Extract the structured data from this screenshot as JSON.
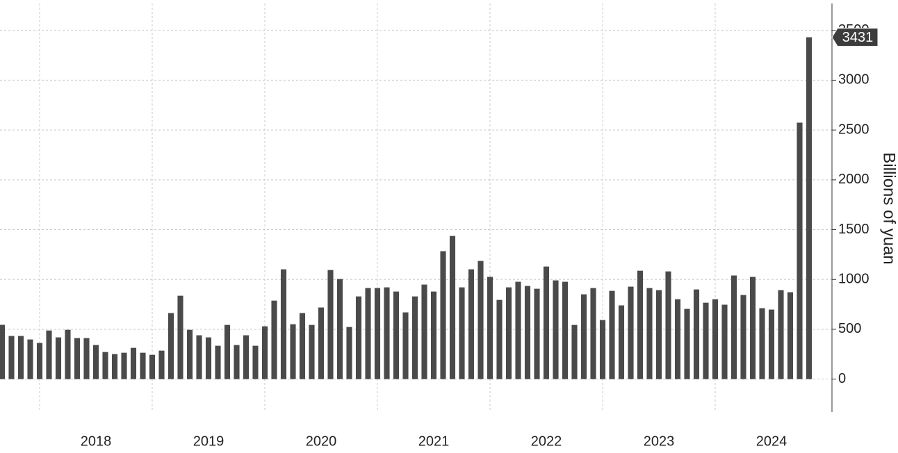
{
  "chart_data": {
    "type": "bar",
    "y_axis_label": "Billions of yuan",
    "categories": [
      null,
      null,
      null,
      null,
      null,
      null,
      null,
      null,
      null,
      null,
      "2018",
      null,
      null,
      null,
      null,
      null,
      null,
      null,
      null,
      null,
      null,
      null,
      "2019",
      null,
      null,
      null,
      null,
      null,
      null,
      null,
      null,
      null,
      null,
      null,
      "2020",
      null,
      null,
      null,
      null,
      null,
      null,
      null,
      null,
      null,
      null,
      null,
      "2021",
      null,
      null,
      null,
      null,
      null,
      null,
      null,
      null,
      null,
      null,
      null,
      "2022",
      null,
      null,
      null,
      null,
      null,
      null,
      null,
      null,
      null,
      null,
      null,
      "2023",
      null,
      null,
      null,
      null,
      null,
      null,
      null,
      null,
      null,
      null,
      null,
      "2024",
      null,
      null,
      null,
      null
    ],
    "values": [
      545,
      433,
      433,
      398,
      363,
      488,
      419,
      495,
      412,
      412,
      342,
      272,
      251,
      265,
      314,
      265,
      244,
      286,
      663,
      837,
      495,
      440,
      419,
      335,
      544,
      342,
      440,
      335,
      530,
      788,
      1102,
      551,
      663,
      544,
      719,
      1095,
      1005,
      523,
      830,
      914,
      914,
      921,
      879,
      670,
      830,
      949,
      879,
      1284,
      1437,
      921,
      1102,
      1186,
      1026,
      795,
      921,
      977,
      935,
      907,
      1130,
      991,
      977,
      544,
      851,
      914,
      593,
      886,
      740,
      928,
      1088,
      914,
      893,
      1081,
      802,
      705,
      900,
      767,
      802,
      747,
      1040,
      844,
      1026,
      712,
      698,
      893,
      872,
      2574,
      3431
    ],
    "color": "#4a4a4a",
    "ylim": [
      -330,
      3770
    ],
    "yticks": [
      0,
      500,
      1000,
      1500,
      2000,
      2500,
      3000,
      3500
    ],
    "grid": true,
    "y_axis_side": "right"
  }
}
